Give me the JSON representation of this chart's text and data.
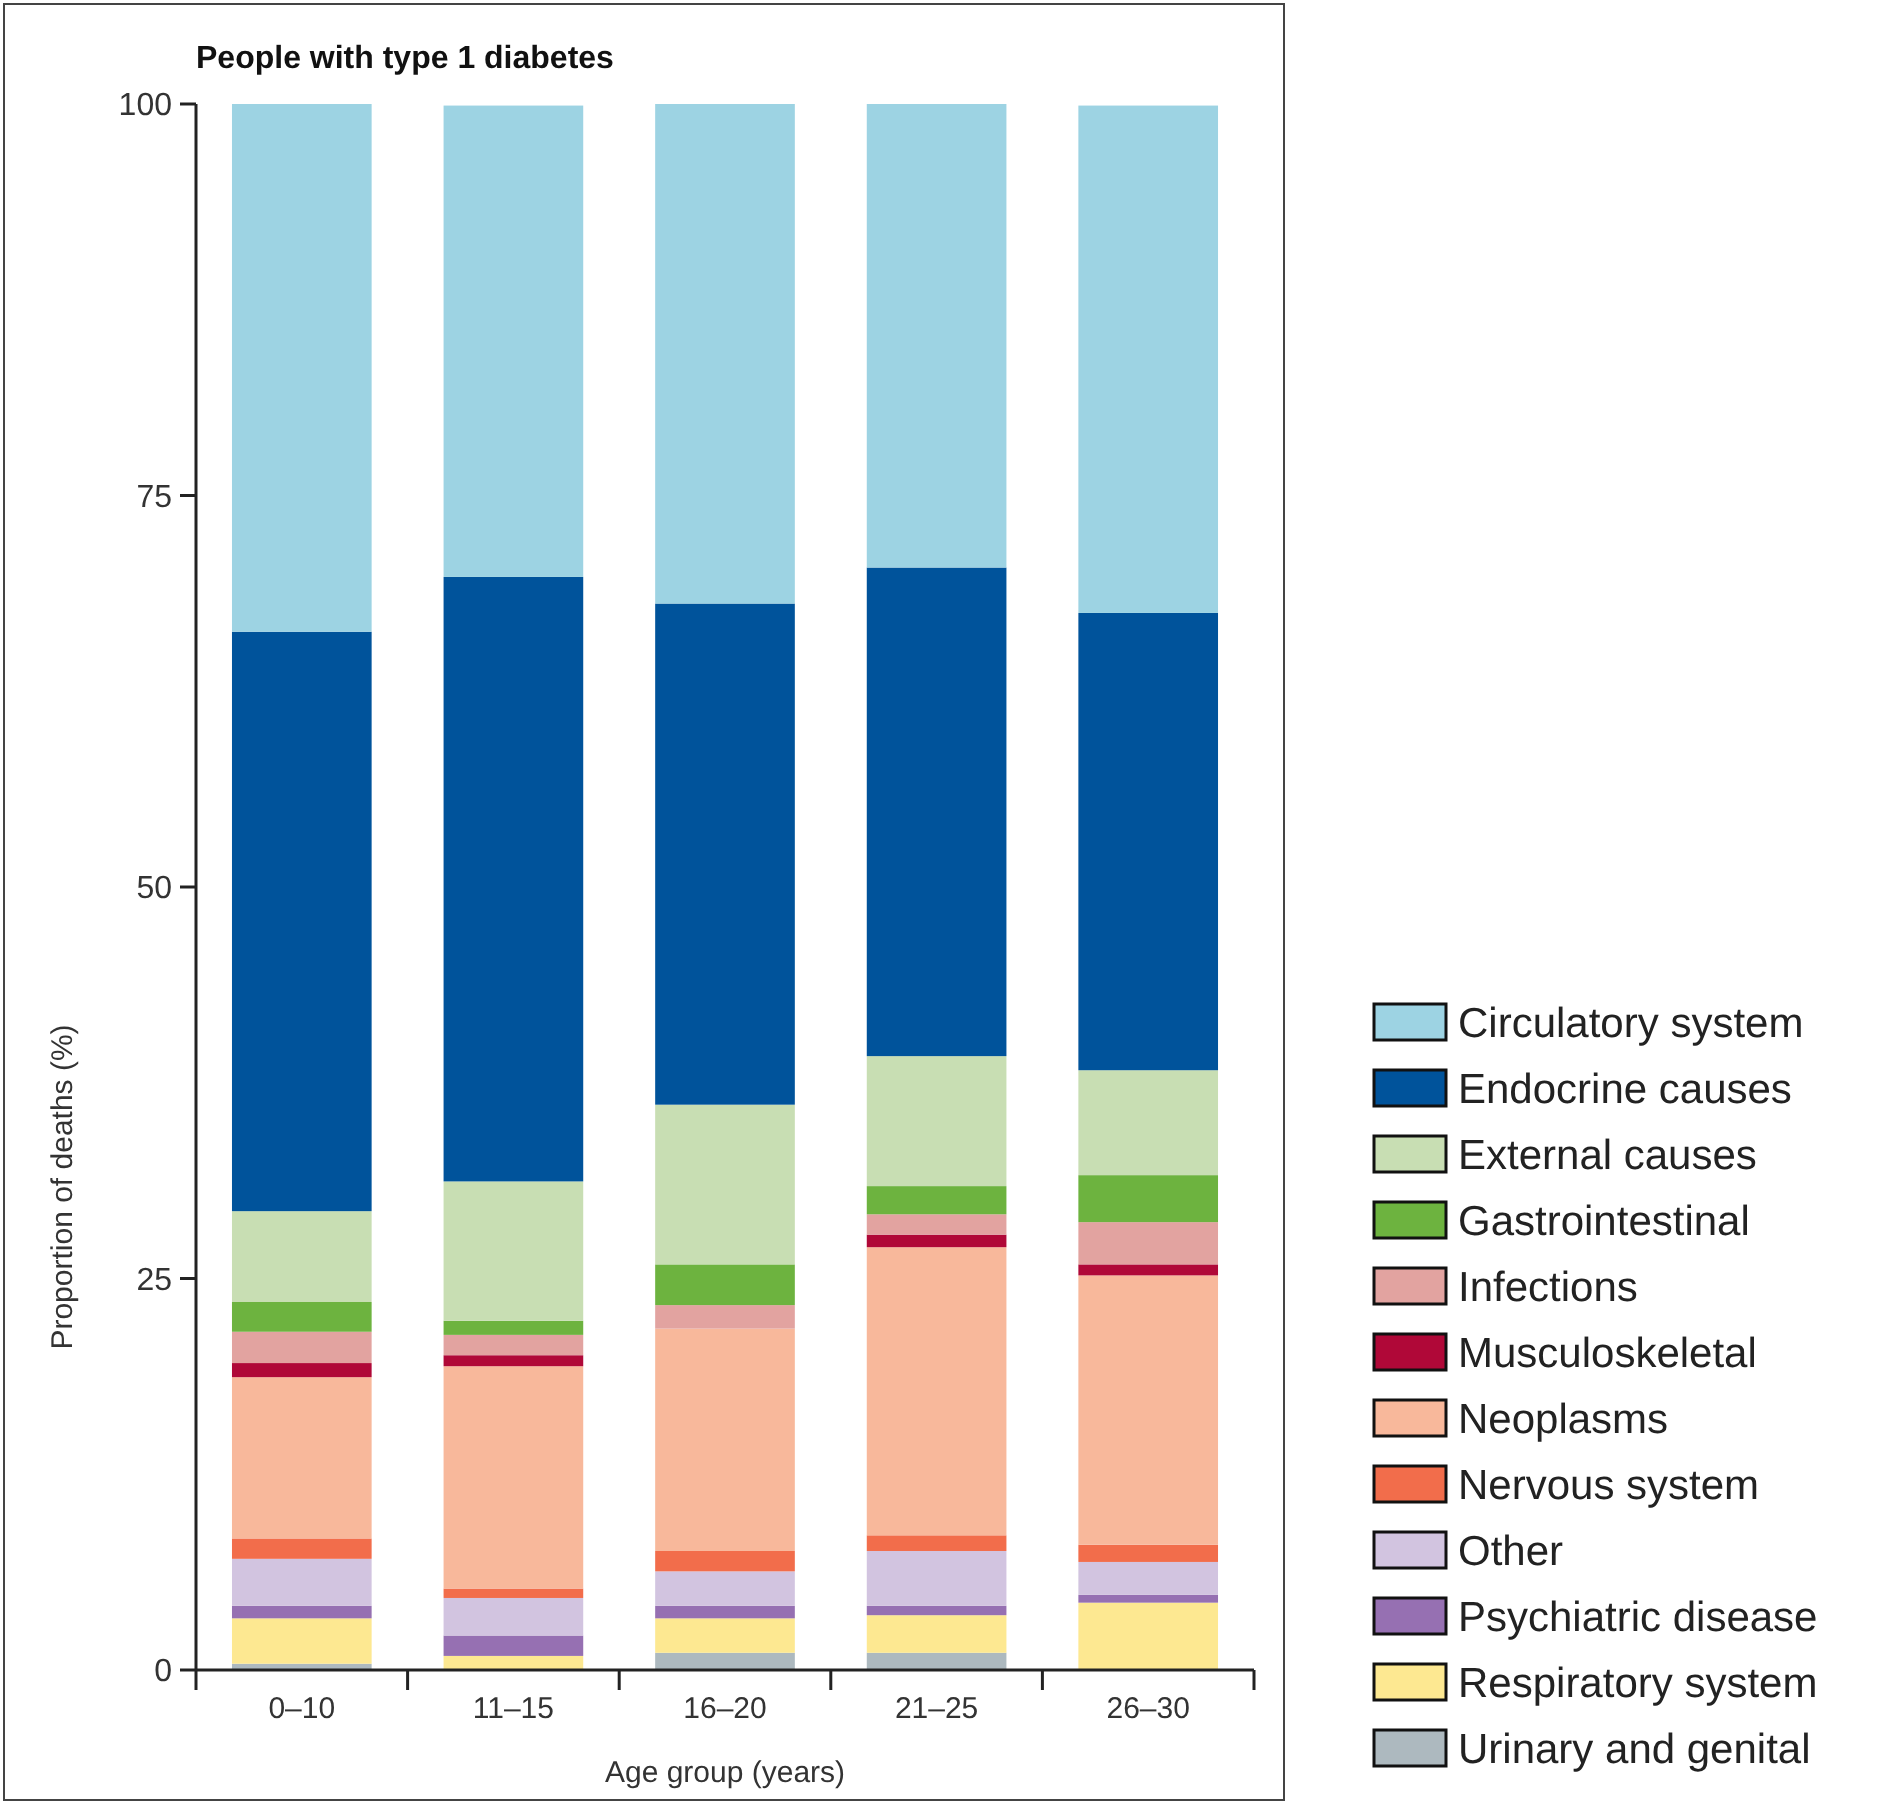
{
  "chart_data": {
    "type": "bar",
    "stacked": true,
    "title": "People with type 1 diabetes",
    "xlabel": "Age group (years)",
    "ylabel": "Proportion of deaths (%)",
    "categories": [
      "0–10",
      "11–15",
      "16–20",
      "21–25",
      "26–30"
    ],
    "ylim": [
      0,
      100
    ],
    "yticks": [
      0,
      25,
      50,
      75,
      100
    ],
    "grid": false,
    "legend": "right",
    "series": [
      {
        "name": "Urinary and genital",
        "color": "#adb9bf",
        "values": [
          0.4,
          0,
          1.1,
          1.1,
          0
        ]
      },
      {
        "name": "Respiratory system",
        "color": "#fde891",
        "values": [
          2.9,
          0.9,
          2.2,
          2.4,
          4.3
        ]
      },
      {
        "name": "Psychiatric disease",
        "color": "#9670b2",
        "values": [
          0.8,
          1.3,
          0.8,
          0.6,
          0.5
        ]
      },
      {
        "name": "Other",
        "color": "#d2c4e0",
        "values": [
          3.0,
          2.4,
          2.2,
          3.5,
          2.1
        ]
      },
      {
        "name": "Nervous system",
        "color": "#f26d4b",
        "values": [
          1.3,
          0.6,
          1.3,
          1.0,
          1.1
        ]
      },
      {
        "name": "Neoplasms",
        "color": "#f8b89b",
        "values": [
          10.3,
          14.2,
          14.2,
          18.4,
          17.2
        ]
      },
      {
        "name": "Musculoskeletal",
        "color": "#b00838",
        "values": [
          0.9,
          0.7,
          0,
          0.8,
          0.7
        ]
      },
      {
        "name": "Infections",
        "color": "#e2a3a0",
        "values": [
          2.0,
          1.3,
          1.5,
          1.3,
          2.7
        ]
      },
      {
        "name": "Gastrointestinal",
        "color": "#6db33f",
        "values": [
          1.9,
          0.9,
          2.6,
          1.8,
          3.0
        ]
      },
      {
        "name": "External causes",
        "color": "#c8deb3",
        "values": [
          5.8,
          8.9,
          10.2,
          8.3,
          6.7
        ]
      },
      {
        "name": "Endocrine causes",
        "color": "#00539b",
        "values": [
          37.0,
          38.6,
          32.0,
          31.2,
          29.2
        ]
      },
      {
        "name": "Circulatory system",
        "color": "#9dd3e3",
        "values": [
          33.7,
          30.1,
          31.9,
          29.6,
          32.4
        ]
      }
    ]
  }
}
